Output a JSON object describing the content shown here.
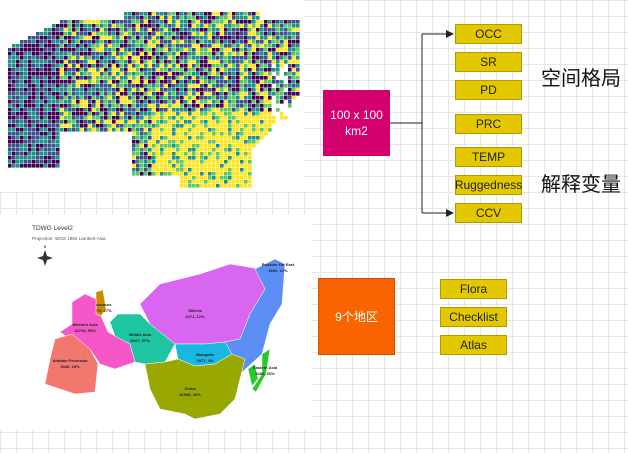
{
  "grid_map": {
    "colormap": [
      "#440154",
      "#3b528b",
      "#21918c",
      "#5ec962",
      "#fde725"
    ]
  },
  "region_map": {
    "title": "TDWG Level2",
    "subtitle": "Projection: WGS 1984 Lambert Asia",
    "compass_label": "N",
    "regions": [
      {
        "name": "Siberia",
        "value": "4471, 12%",
        "color": "#d966f0"
      },
      {
        "name": "Russian Far East",
        "value": "3600, 12%",
        "color": "#5b8ff5"
      },
      {
        "name": "Caucasus",
        "value": "6272, 27%",
        "color": "#cc8a00"
      },
      {
        "name": "Western Asia",
        "value": "16733, 50%",
        "color": "#f556c8"
      },
      {
        "name": "Middle Asia",
        "value": "9107, 37%",
        "color": "#1fc4a0"
      },
      {
        "name": "Mongolia",
        "value": "2977, 4%",
        "color": "#19b8e0"
      },
      {
        "name": "Arabian Peninsula",
        "value": "3046, 18%",
        "color": "#f2776e"
      },
      {
        "name": "China",
        "value": "32398, 49%",
        "color": "#99a800"
      },
      {
        "name": "Eastern Asia",
        "value": "9286, 30%",
        "color": "#2ac92a"
      }
    ]
  },
  "diagram": {
    "grid_box": {
      "label": "100 x 100 km2",
      "color": "#d4006e"
    },
    "variables": [
      "OCC",
      "SR",
      "PD",
      "PRC",
      "TEMP",
      "Ruggedness",
      "CCV"
    ],
    "label_pattern": "空间格局",
    "label_explanatory": "解释变量",
    "region_box": {
      "label": "9个地区",
      "color": "#fa6400"
    },
    "sources": [
      "Flora",
      "Checklist",
      "Atlas"
    ]
  }
}
